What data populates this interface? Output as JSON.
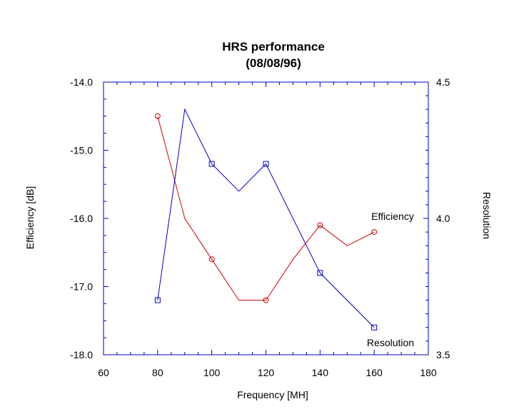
{
  "chart_data": {
    "type": "line",
    "title": "HRS performance",
    "subtitle": "(08/08/96)",
    "xlabel": "Frequency [MH]",
    "ylabel_left": "Efficiency [dB]",
    "ylabel_right": "Resolution",
    "xlim": [
      60,
      180
    ],
    "ylim_left": [
      -18.0,
      -14.0
    ],
    "ylim_right": [
      3.5,
      4.5
    ],
    "x_ticks": [
      "60",
      "80",
      "100",
      "120",
      "140",
      "160",
      "180"
    ],
    "y_left_ticks": [
      "-14.0",
      "-15.0",
      "-16.0",
      "-17.0",
      "-18.0"
    ],
    "y_right_ticks": [
      "4.5",
      "4.0",
      "3.5"
    ],
    "grid": false,
    "series": [
      {
        "name": "Efficiency",
        "axis": "left",
        "color": "#cc0000",
        "marker": "circle",
        "x": [
          80,
          90,
          100,
          110,
          120,
          130,
          140,
          150,
          160
        ],
        "y": [
          -14.5,
          -16.0,
          -16.6,
          -17.2,
          -17.2,
          -16.6,
          -16.1,
          -16.4,
          -16.2
        ],
        "marker_x": [
          80,
          100,
          120,
          140,
          160
        ]
      },
      {
        "name": "Resolution",
        "axis": "right",
        "color": "#0000cc",
        "marker": "square",
        "x": [
          80,
          90,
          100,
          110,
          120,
          140,
          160
        ],
        "y": [
          3.7,
          4.4,
          4.2,
          4.1,
          4.2,
          3.8,
          3.6
        ],
        "marker_x": [
          80,
          100,
          120,
          140,
          160
        ]
      }
    ]
  }
}
